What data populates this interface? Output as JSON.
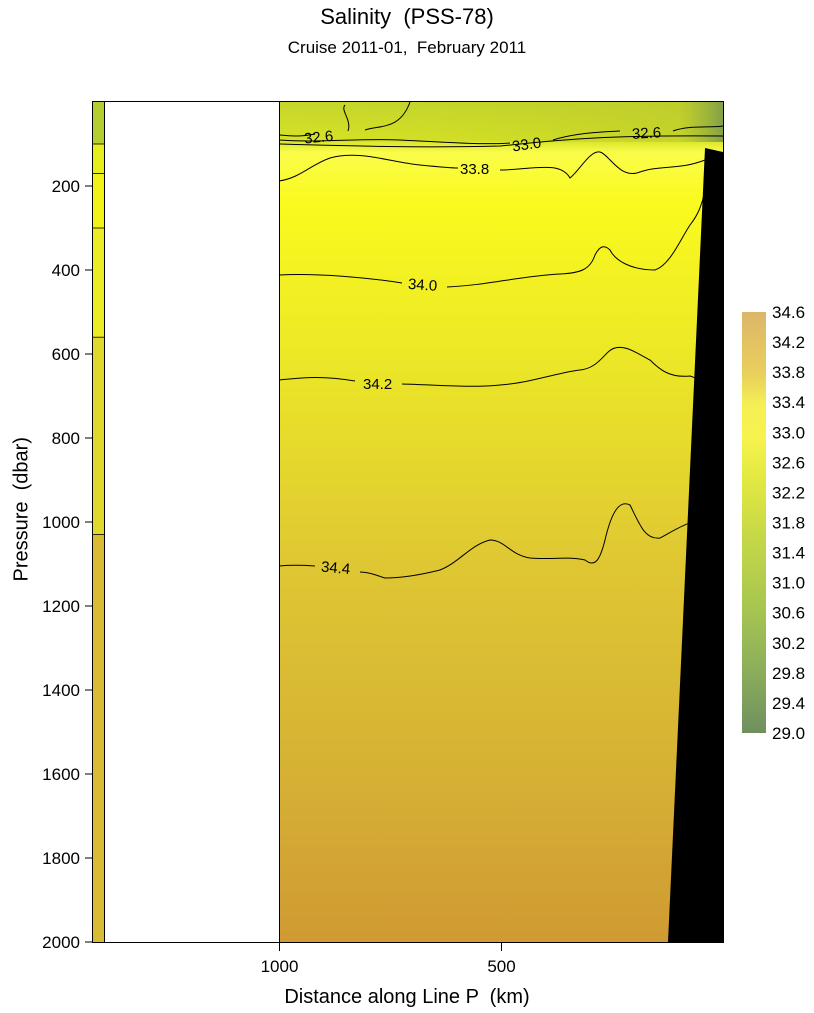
{
  "chart_data": {
    "type": "heatmap",
    "title": "Salinity  (PSS-78)",
    "subtitle": "Cruise 2011-01,  February 2011",
    "xlabel": "Distance along Line P  (km)",
    "ylabel": "Pressure  (dbar)",
    "x_axis": {
      "reversed": true,
      "tick_labels": [
        "1000",
        "500"
      ],
      "tick_values": [
        1000,
        500
      ]
    },
    "y_axis": {
      "reversed": true,
      "range": [
        0,
        2000
      ],
      "tick_labels": [
        "200",
        "400",
        "600",
        "800",
        "1000",
        "1200",
        "1400",
        "1600",
        "1800",
        "2000"
      ],
      "tick_values": [
        200,
        400,
        600,
        800,
        1000,
        1200,
        1400,
        1600,
        1800,
        2000
      ]
    },
    "colorbar": {
      "labels": [
        "34.6",
        "34.2",
        "33.8",
        "33.4",
        "33.0",
        "32.6",
        "32.2",
        "31.8",
        "31.4",
        "31.0",
        "30.6",
        "30.2",
        "29.8",
        "29.4",
        "29.0"
      ],
      "range": [
        29.0,
        34.6
      ],
      "colors": [
        "#d9b26a",
        "#e8c85e",
        "#f3ec55",
        "#f7f34f",
        "#eef047",
        "#dbe342",
        "#c6d844",
        "#b6cf4a",
        "#a8c650",
        "#9ebd56",
        "#93b55a",
        "#8aac5c",
        "#80a35e",
        "#789a5e",
        "#6f905e"
      ]
    },
    "profile_bar": [
      {
        "pressure": 0,
        "salinity": 32.3,
        "color": "#b5cd30"
      },
      {
        "pressure": 100,
        "salinity": 33.7,
        "color": "#e5ef1d"
      },
      {
        "pressure": 170,
        "salinity": 33.9,
        "color": "#f2f21a"
      },
      {
        "pressure": 300,
        "salinity": 34.0,
        "color": "#eaec26"
      },
      {
        "pressure": 560,
        "salinity": 34.1,
        "color": "#dfd82d"
      },
      {
        "pressure": 1030,
        "salinity": 34.4,
        "color": "#dabc34"
      },
      {
        "pressure": 2000,
        "salinity": 34.5,
        "color": "#cf9c38"
      }
    ],
    "contours": [
      {
        "label": "32.6",
        "depth": 70
      },
      {
        "label": "33.0",
        "depth": 90
      },
      {
        "label": "32.6",
        "depth": 65
      },
      {
        "label": "33.8",
        "depth": 170
      },
      {
        "label": "34.0",
        "depth": 430
      },
      {
        "label": "34.2",
        "depth": 670
      },
      {
        "label": "34.4",
        "depth": 1110
      }
    ],
    "grid": false
  }
}
